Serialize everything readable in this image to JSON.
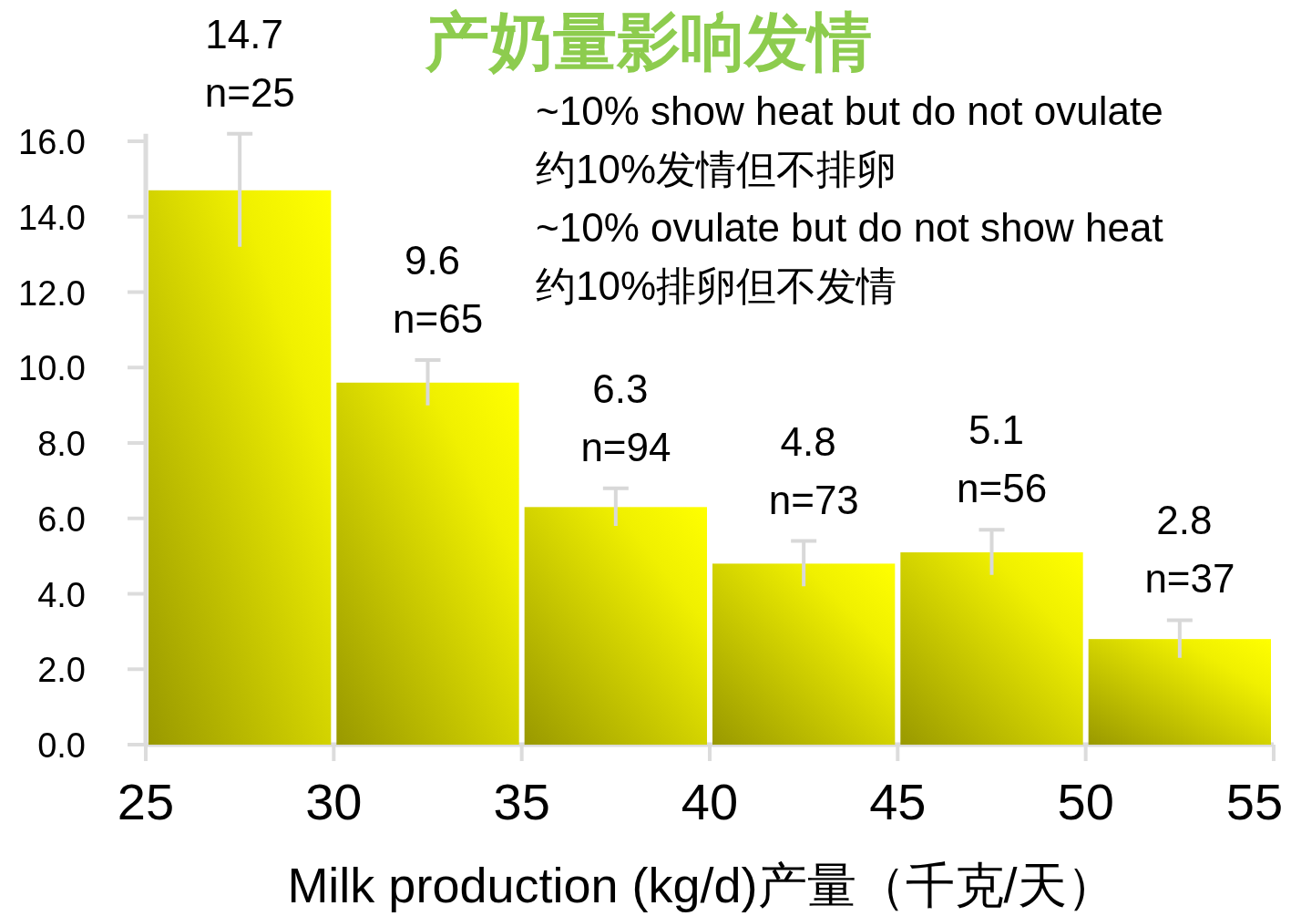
{
  "chart_data": {
    "type": "histogram",
    "title": "产奶量影响发情",
    "xlabel": "Milk production (kg/d)产量（千克/天）",
    "annotations": [
      "~10% show heat but do not ovulate",
      "约10%发情但不排卵",
      "~10% ovulate but do not show heat",
      "约10%排卵但不发情"
    ],
    "bins": [
      25,
      30,
      35,
      40,
      45,
      50,
      55
    ],
    "values": [
      14.7,
      9.6,
      6.3,
      4.8,
      5.1,
      2.8
    ],
    "errors": [
      1.5,
      0.6,
      0.5,
      0.6,
      0.6,
      0.5
    ],
    "value_labels": [
      "14.7\nn=25",
      "9.6\nn=65",
      "6.3\nn=94",
      "4.8\nn=73",
      "5.1\nn=56",
      "2.8\nn=37"
    ],
    "color": "#f0f000",
    "xlim": [
      25,
      55
    ],
    "xticks": [
      25,
      30,
      35,
      40,
      45,
      50,
      55
    ],
    "ylim": [
      0,
      16.2
    ],
    "yticks": [
      {
        "value": 0,
        "label": "0.0"
      },
      {
        "value": 2,
        "label": "2.0"
      },
      {
        "value": 4,
        "label": "4.0"
      },
      {
        "value": 6,
        "label": "6.0"
      },
      {
        "value": 8,
        "label": "8.0"
      },
      {
        "value": 10,
        "label": "10.0"
      },
      {
        "value": 12,
        "label": "12.0"
      },
      {
        "value": 14,
        "label": "14.0"
      },
      {
        "value": 16,
        "label": "16.0"
      }
    ],
    "grid": false
  }
}
